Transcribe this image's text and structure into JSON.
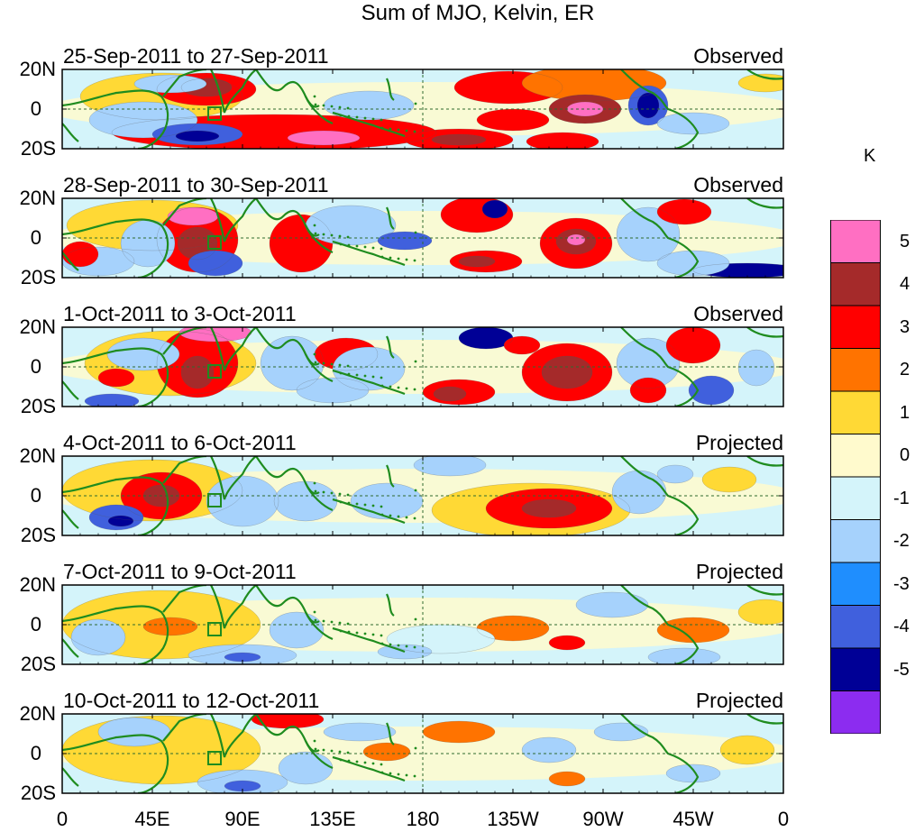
{
  "title": "Sum of MJO, Kelvin, ER",
  "lat_labels": [
    "20N",
    "0",
    "20S"
  ],
  "lon_labels": [
    "0",
    "45E",
    "90E",
    "135E",
    "180",
    "135W",
    "90W",
    "45W",
    "0"
  ],
  "panels": [
    {
      "dates": "25-Sep-2011 to 27-Sep-2011",
      "status": "Observed"
    },
    {
      "dates": "28-Sep-2011 to 30-Sep-2011",
      "status": "Observed"
    },
    {
      "dates": "1-Oct-2011 to 3-Oct-2011",
      "status": "Observed"
    },
    {
      "dates": "4-Oct-2011 to 6-Oct-2011",
      "status": "Projected"
    },
    {
      "dates": "7-Oct-2011 to 9-Oct-2011",
      "status": "Projected"
    },
    {
      "dates": "10-Oct-2011 to 12-Oct-2011",
      "status": "Projected"
    }
  ],
  "colorbar": {
    "unit": "K",
    "tick_labels": [
      "5",
      "4",
      "3",
      "2",
      "1",
      "0",
      "-1",
      "-2",
      "-3",
      "-4",
      "-5"
    ],
    "colors": [
      "#ff6fc2",
      "#a52a2a",
      "#ff0000",
      "#ff7300",
      "#ffd935",
      "#fffacd",
      "#d4f4fa",
      "#a6d2fc",
      "#1f8efe",
      "#4060dd",
      "#000096",
      "#8c2cf0"
    ]
  },
  "colors": {
    "coastline": "#1f8c1f",
    "reference_lines": "#2e8b57"
  }
}
